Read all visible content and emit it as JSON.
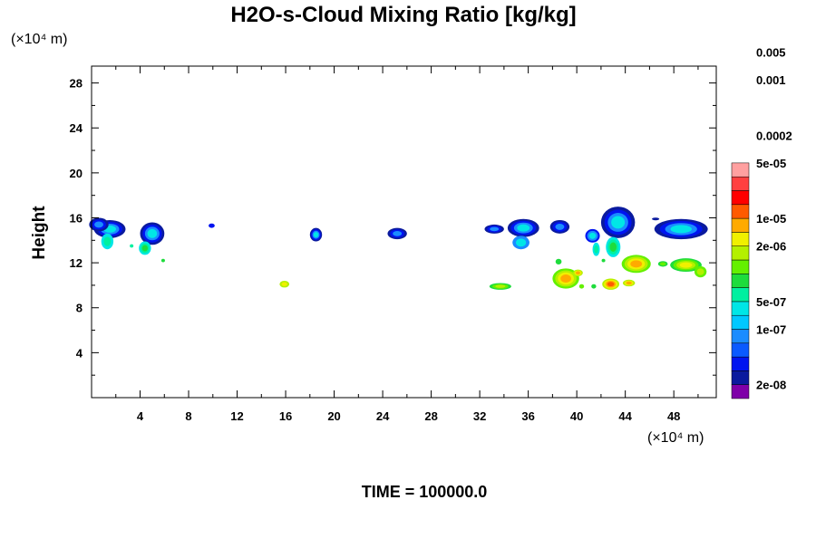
{
  "chart_data": {
    "type": "heatmap",
    "title": "H2O-s-Cloud Mixing Ratio [kg/kg]",
    "ylabel": "Height",
    "x_unit": "(×10⁴ m)",
    "y_unit": "(×10⁴ m)",
    "footer": "TIME = 100000.0",
    "xlim": [
      0,
      51.5
    ],
    "ylim": [
      0,
      29.5
    ],
    "x_ticks": [
      {
        "value": 4,
        "label": "4"
      },
      {
        "value": 8,
        "label": "8"
      },
      {
        "value": 12,
        "label": "12"
      },
      {
        "value": 16,
        "label": "16"
      },
      {
        "value": 20,
        "label": "20"
      },
      {
        "value": 24,
        "label": "24"
      },
      {
        "value": 28,
        "label": "28"
      },
      {
        "value": 32,
        "label": "32"
      },
      {
        "value": 36,
        "label": "36"
      },
      {
        "value": 40,
        "label": "40"
      },
      {
        "value": 44,
        "label": "44"
      },
      {
        "value": 48,
        "label": "48"
      }
    ],
    "x_minor_ticks": [
      2,
      6,
      10,
      14,
      18,
      22,
      26,
      30,
      34,
      38,
      42,
      46,
      50
    ],
    "y_ticks": [
      {
        "value": 4,
        "label": "4"
      },
      {
        "value": 8,
        "label": "8"
      },
      {
        "value": 12,
        "label": "12"
      },
      {
        "value": 16,
        "label": "16"
      },
      {
        "value": 20,
        "label": "20"
      },
      {
        "value": 24,
        "label": "24"
      },
      {
        "value": 28,
        "label": "28"
      }
    ],
    "y_minor_ticks": [
      2,
      6,
      10,
      14,
      18,
      22,
      26
    ],
    "colorbar": {
      "colors": [
        "#7f00a8",
        "#0a1a9e",
        "#0014f0",
        "#0a5aff",
        "#1a8cff",
        "#00c8ff",
        "#00e6e6",
        "#00f0a0",
        "#1edc3c",
        "#64f000",
        "#b4f000",
        "#f0f000",
        "#ffaa00",
        "#ff5a00",
        "#ff0000",
        "#ff4040",
        "#ffa0a0"
      ],
      "labels": [
        {
          "index": 1,
          "text": "2e-08"
        },
        {
          "index": 3,
          "text": "1e-07"
        },
        {
          "index": 4,
          "text": "5e-07"
        },
        {
          "index": 6,
          "text": "2e-06"
        },
        {
          "index": 7,
          "text": "1e-05"
        },
        {
          "index": 9,
          "text": "5e-05"
        },
        {
          "index": 10,
          "text": "0.0002"
        },
        {
          "index": 12,
          "text": "0.001"
        },
        {
          "index": 13,
          "text": "0.005"
        }
      ]
    },
    "regions": [
      {
        "x": 1.5,
        "y": 15.0,
        "rx": 1.3,
        "ry": 0.8,
        "levels": [
          1,
          2,
          4,
          6
        ]
      },
      {
        "x": 0.6,
        "y": 15.4,
        "rx": 0.8,
        "ry": 0.6,
        "levels": [
          1,
          2,
          4
        ]
      },
      {
        "x": 1.3,
        "y": 13.9,
        "rx": 0.5,
        "ry": 0.7,
        "levels": [
          6,
          7
        ]
      },
      {
        "x": 5.0,
        "y": 14.6,
        "rx": 1.0,
        "ry": 1.0,
        "levels": [
          1,
          2,
          4,
          6
        ]
      },
      {
        "x": 4.4,
        "y": 13.3,
        "rx": 0.5,
        "ry": 0.6,
        "levels": [
          6,
          7,
          8
        ]
      },
      {
        "x": 3.3,
        "y": 13.5,
        "rx": 0.15,
        "ry": 0.15,
        "levels": [
          7
        ]
      },
      {
        "x": 5.9,
        "y": 12.2,
        "rx": 0.15,
        "ry": 0.15,
        "levels": [
          8
        ]
      },
      {
        "x": 9.9,
        "y": 15.3,
        "rx": 0.25,
        "ry": 0.2,
        "levels": [
          2
        ]
      },
      {
        "x": 15.9,
        "y": 10.1,
        "rx": 0.4,
        "ry": 0.3,
        "levels": [
          10,
          11
        ]
      },
      {
        "x": 18.5,
        "y": 14.5,
        "rx": 0.5,
        "ry": 0.6,
        "levels": [
          1,
          2,
          4,
          6
        ]
      },
      {
        "x": 25.2,
        "y": 14.6,
        "rx": 0.8,
        "ry": 0.5,
        "levels": [
          1,
          2,
          4
        ]
      },
      {
        "x": 33.2,
        "y": 15.0,
        "rx": 0.8,
        "ry": 0.4,
        "levels": [
          1,
          2,
          4
        ]
      },
      {
        "x": 35.6,
        "y": 15.1,
        "rx": 1.3,
        "ry": 0.8,
        "levels": [
          1,
          2,
          4,
          6
        ]
      },
      {
        "x": 35.4,
        "y": 13.8,
        "rx": 0.7,
        "ry": 0.6,
        "levels": [
          4,
          6
        ]
      },
      {
        "x": 38.6,
        "y": 15.2,
        "rx": 0.8,
        "ry": 0.6,
        "levels": [
          1,
          2,
          4
        ]
      },
      {
        "x": 41.3,
        "y": 14.4,
        "rx": 0.6,
        "ry": 0.6,
        "levels": [
          2,
          4,
          6
        ]
      },
      {
        "x": 41.6,
        "y": 13.2,
        "rx": 0.3,
        "ry": 0.6,
        "levels": [
          6,
          7
        ]
      },
      {
        "x": 43.4,
        "y": 15.6,
        "rx": 1.4,
        "ry": 1.4,
        "levels": [
          1,
          2,
          4,
          6
        ]
      },
      {
        "x": 43.0,
        "y": 13.4,
        "rx": 0.6,
        "ry": 0.9,
        "levels": [
          6,
          7,
          8
        ]
      },
      {
        "x": 48.6,
        "y": 15.0,
        "rx": 2.2,
        "ry": 0.9,
        "levels": [
          1,
          2,
          4,
          6
        ]
      },
      {
        "x": 46.5,
        "y": 15.9,
        "rx": 0.3,
        "ry": 0.1,
        "levels": [
          1
        ]
      },
      {
        "x": 39.1,
        "y": 10.6,
        "rx": 1.1,
        "ry": 0.9,
        "levels": [
          9,
          10,
          11,
          12
        ]
      },
      {
        "x": 40.1,
        "y": 11.1,
        "rx": 0.4,
        "ry": 0.3,
        "levels": [
          10,
          11,
          12
        ]
      },
      {
        "x": 38.5,
        "y": 12.1,
        "rx": 0.25,
        "ry": 0.25,
        "levels": [
          8
        ]
      },
      {
        "x": 40.4,
        "y": 9.9,
        "rx": 0.2,
        "ry": 0.2,
        "levels": [
          9
        ]
      },
      {
        "x": 41.4,
        "y": 9.9,
        "rx": 0.2,
        "ry": 0.2,
        "levels": [
          8
        ]
      },
      {
        "x": 42.8,
        "y": 10.1,
        "rx": 0.7,
        "ry": 0.5,
        "levels": [
          10,
          11,
          12,
          13
        ]
      },
      {
        "x": 44.3,
        "y": 10.2,
        "rx": 0.5,
        "ry": 0.3,
        "levels": [
          10,
          11,
          12
        ]
      },
      {
        "x": 44.9,
        "y": 11.9,
        "rx": 1.2,
        "ry": 0.8,
        "levels": [
          9,
          10,
          11,
          12
        ]
      },
      {
        "x": 49.0,
        "y": 11.8,
        "rx": 1.3,
        "ry": 0.6,
        "levels": [
          8,
          9,
          10,
          11
        ]
      },
      {
        "x": 50.2,
        "y": 11.2,
        "rx": 0.5,
        "ry": 0.5,
        "levels": [
          9,
          10
        ]
      },
      {
        "x": 47.1,
        "y": 11.9,
        "rx": 0.4,
        "ry": 0.25,
        "levels": [
          8,
          9
        ]
      },
      {
        "x": 33.7,
        "y": 9.9,
        "rx": 0.9,
        "ry": 0.3,
        "levels": [
          8,
          9,
          10
        ]
      },
      {
        "x": 42.2,
        "y": 12.2,
        "rx": 0.15,
        "ry": 0.15,
        "levels": [
          8
        ]
      }
    ]
  }
}
